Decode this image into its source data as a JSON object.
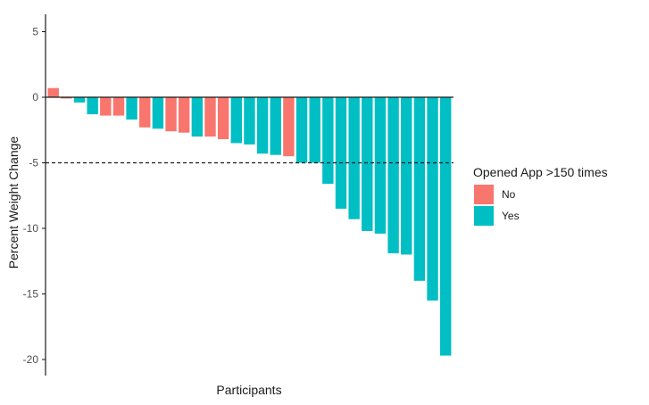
{
  "chart_data": {
    "type": "bar",
    "title": "",
    "xlabel": "Participants",
    "ylabel": "Percent Weight Change",
    "ylim": [
      -21,
      5.5
    ],
    "yticks": [
      5,
      0,
      -5,
      -10,
      -15,
      -20
    ],
    "ytick_labels": [
      "5",
      "0",
      "-5",
      "-10",
      "-15",
      "-20"
    ],
    "reference_line": {
      "y": -5,
      "style": "dashed"
    },
    "grid": false,
    "legend": {
      "title": "Opened App >150 times",
      "placement": "right",
      "entries": [
        {
          "label": "No",
          "color": "#F8766D"
        },
        {
          "label": "Yes",
          "color": "#00BFC4"
        }
      ]
    },
    "bars": [
      {
        "value": 0.7,
        "group": "No"
      },
      {
        "value": -0.1,
        "group": "No"
      },
      {
        "value": -0.4,
        "group": "Yes"
      },
      {
        "value": -1.3,
        "group": "Yes"
      },
      {
        "value": -1.4,
        "group": "No"
      },
      {
        "value": -1.4,
        "group": "No"
      },
      {
        "value": -1.7,
        "group": "Yes"
      },
      {
        "value": -2.3,
        "group": "No"
      },
      {
        "value": -2.4,
        "group": "Yes"
      },
      {
        "value": -2.6,
        "group": "No"
      },
      {
        "value": -2.7,
        "group": "No"
      },
      {
        "value": -3.0,
        "group": "Yes"
      },
      {
        "value": -3.0,
        "group": "No"
      },
      {
        "value": -3.2,
        "group": "No"
      },
      {
        "value": -3.5,
        "group": "Yes"
      },
      {
        "value": -3.6,
        "group": "Yes"
      },
      {
        "value": -4.3,
        "group": "Yes"
      },
      {
        "value": -4.4,
        "group": "Yes"
      },
      {
        "value": -4.5,
        "group": "No"
      },
      {
        "value": -5.0,
        "group": "Yes"
      },
      {
        "value": -5.0,
        "group": "Yes"
      },
      {
        "value": -6.6,
        "group": "Yes"
      },
      {
        "value": -8.5,
        "group": "Yes"
      },
      {
        "value": -9.3,
        "group": "Yes"
      },
      {
        "value": -10.2,
        "group": "Yes"
      },
      {
        "value": -10.4,
        "group": "Yes"
      },
      {
        "value": -11.9,
        "group": "Yes"
      },
      {
        "value": -12.0,
        "group": "Yes"
      },
      {
        "value": -14.0,
        "group": "Yes"
      },
      {
        "value": -15.5,
        "group": "Yes"
      },
      {
        "value": -19.7,
        "group": "Yes"
      }
    ]
  }
}
